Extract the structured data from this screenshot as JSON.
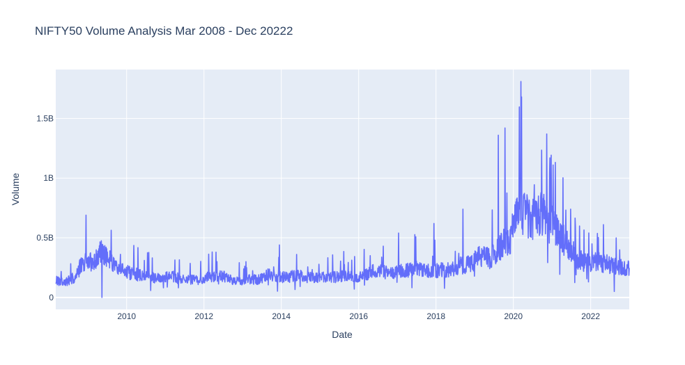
{
  "chart_data": {
    "type": "line",
    "title": "NIFTY50 Volume Analysis Mar 2008 - Dec 20222",
    "xlabel": "Date",
    "ylabel": "Volume",
    "xlim": [
      "2008-03-01",
      "2022-12-31"
    ],
    "ylim": [
      -100000000,
      1910000000
    ],
    "x_ticks": [
      "2010",
      "2012",
      "2014",
      "2016",
      "2018",
      "2020",
      "2022"
    ],
    "y_ticks": [
      "0",
      "0.5B",
      "1B",
      "1.5B"
    ],
    "grid": true,
    "colors": {
      "line": "#636efa",
      "plot_bg": "#e5ecf6",
      "grid": "#ffffff",
      "text": "#2a3f5f"
    },
    "series": [
      {
        "values": {
          "x": [
            "2008-03",
            "2008-06",
            "2008-09",
            "2008-11",
            "2009-01",
            "2009-03",
            "2009-05",
            "2009-07",
            "2009-09",
            "2009-12",
            "2010-03",
            "2010-06",
            "2010-09",
            "2010-12",
            "2011-03",
            "2011-06",
            "2011-09",
            "2011-12",
            "2012-03",
            "2012-06",
            "2012-09",
            "2012-12",
            "2013-03",
            "2013-06",
            "2013-09",
            "2013-12",
            "2014-03",
            "2014-06",
            "2014-09",
            "2014-12",
            "2015-03",
            "2015-06",
            "2015-09",
            "2015-12",
            "2016-03",
            "2016-06",
            "2016-09",
            "2016-12",
            "2017-03",
            "2017-06",
            "2017-09",
            "2017-12",
            "2018-03",
            "2018-06",
            "2018-09",
            "2018-12",
            "2019-03",
            "2019-06",
            "2019-09",
            "2019-12",
            "2020-02",
            "2020-03",
            "2020-04",
            "2020-06",
            "2020-08",
            "2020-10",
            "2020-12",
            "2021-02",
            "2021-04",
            "2021-06",
            "2021-09",
            "2021-12",
            "2022-03",
            "2022-06",
            "2022-09",
            "2022-12"
          ],
          "y": [
            140000000,
            130000000,
            170000000,
            280000000,
            300000000,
            280000000,
            400000000,
            330000000,
            270000000,
            220000000,
            200000000,
            180000000,
            170000000,
            160000000,
            180000000,
            150000000,
            150000000,
            140000000,
            180000000,
            190000000,
            150000000,
            140000000,
            150000000,
            150000000,
            190000000,
            170000000,
            170000000,
            190000000,
            170000000,
            160000000,
            180000000,
            170000000,
            180000000,
            170000000,
            190000000,
            230000000,
            210000000,
            210000000,
            220000000,
            250000000,
            230000000,
            220000000,
            230000000,
            240000000,
            270000000,
            280000000,
            350000000,
            330000000,
            420000000,
            500000000,
            650000000,
            900000000,
            700000000,
            680000000,
            660000000,
            700000000,
            620000000,
            600000000,
            500000000,
            450000000,
            320000000,
            290000000,
            300000000,
            280000000,
            260000000,
            240000000
          ]
        },
        "spikes": [
          {
            "x": "2008-12",
            "y": 690000000
          },
          {
            "x": "2009-05",
            "y": 680000000
          },
          {
            "x": "2009-05",
            "y": 0
          },
          {
            "x": "2013-12",
            "y": 440000000
          },
          {
            "x": "2017-01",
            "y": 540000000
          },
          {
            "x": "2017-12",
            "y": 620000000
          },
          {
            "x": "2018-09",
            "y": 740000000
          },
          {
            "x": "2019-08",
            "y": 1360000000
          },
          {
            "x": "2019-10",
            "y": 1420000000
          },
          {
            "x": "2020-03",
            "y": 1810000000
          },
          {
            "x": "2020-11",
            "y": 1370000000
          },
          {
            "x": "2020-12",
            "y": 1170000000
          },
          {
            "x": "2021-01",
            "y": 1110000000
          },
          {
            "x": "2022-08",
            "y": 50000000
          }
        ]
      }
    ]
  }
}
